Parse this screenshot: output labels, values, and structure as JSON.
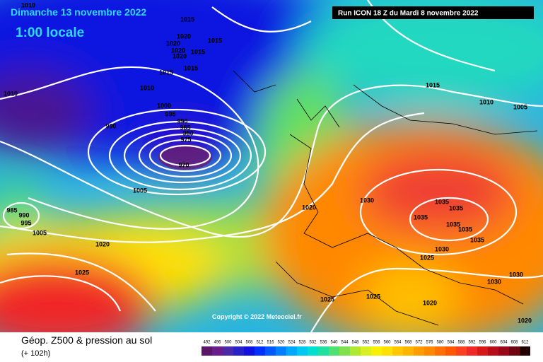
{
  "header": {
    "date": "Dimanche 13 novembre 2022",
    "time": "1:00 locale",
    "run": "Run ICON 18 Z du Mardi 8 novembre 2022"
  },
  "footer": {
    "title": "Géop. Z500 & pression au sol",
    "lead": "(+ 102h)",
    "copyright": "Copyright © 2022 Meteociel.fr"
  },
  "colorbar": {
    "ticks": [
      "492",
      "496",
      "500",
      "504",
      "508",
      "512",
      "516",
      "520",
      "524",
      "528",
      "532",
      "536",
      "540",
      "544",
      "548",
      "552",
      "556",
      "560",
      "564",
      "568",
      "572",
      "576",
      "580",
      "584",
      "588",
      "592",
      "596",
      "600",
      "604",
      "608",
      "612"
    ],
    "colors": [
      "#5a1468",
      "#6a1c88",
      "#4a28a8",
      "#2a20c8",
      "#1010e0",
      "#0030ff",
      "#0058ff",
      "#0080ff",
      "#00a8ff",
      "#00c8f0",
      "#00e0d0",
      "#20e0a0",
      "#50e070",
      "#80e050",
      "#b0e830",
      "#d8f020",
      "#f8f000",
      "#ffe000",
      "#ffc800",
      "#ffb400",
      "#ff9c00",
      "#ff8800",
      "#ff7000",
      "#ff5800",
      "#ff4020",
      "#f02828",
      "#d81818",
      "#b80c18",
      "#980818",
      "#700410",
      "#200000"
    ]
  },
  "isobar_labels": [
    "1010",
    "1015",
    "1020",
    "1015",
    "1020",
    "1020",
    "1015",
    "1020",
    "1015",
    "1015",
    "1010",
    "1010",
    "1015",
    "1010",
    "1005",
    "1000",
    "995",
    "990",
    "990",
    "985",
    "980",
    "975",
    "970",
    "1005",
    "1020",
    "1030",
    "1035",
    "1035",
    "985",
    "990",
    "995",
    "1005",
    "1035",
    "1035",
    "1035",
    "1035",
    "1020",
    "1030",
    "1025",
    "1025",
    "1030",
    "1030",
    "1025",
    "1025",
    "1020",
    "1020"
  ]
}
